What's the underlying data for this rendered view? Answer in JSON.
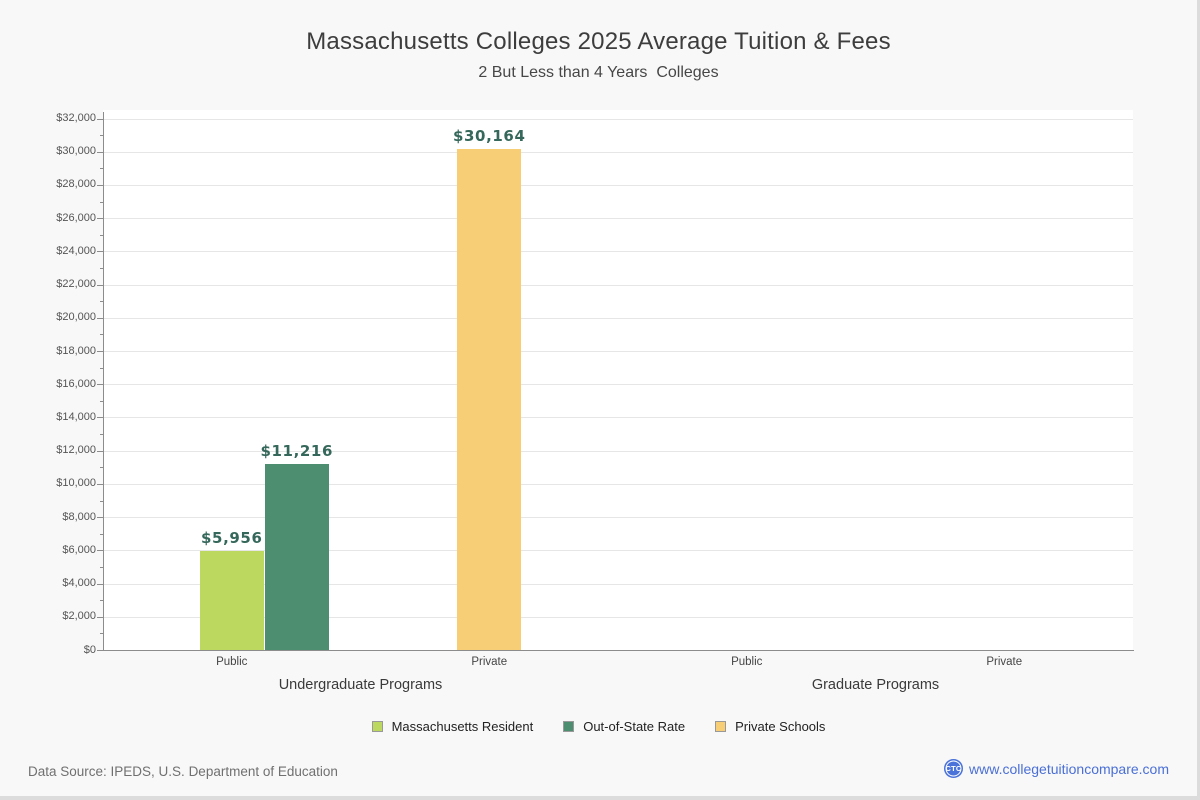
{
  "page": {
    "title": "Massachusetts Colleges 2025 Average Tuition & Fees",
    "subtitle": "2 But Less than 4 Years  Colleges",
    "footer": {
      "source": "Data Source: IPEDS, U.S. Department of Education",
      "logo_text": "CTC",
      "site": "www.collegetuitioncompare.com"
    }
  },
  "chart_data": {
    "type": "bar",
    "title": "Massachusetts Colleges 2025 Average Tuition & Fees",
    "subtitle": "2 But Less than 4 Years  Colleges",
    "xlabel": "",
    "ylabel": "",
    "ylim": [
      0,
      32000
    ],
    "ytick_step": 2000,
    "ytick_minor_step": 1000,
    "ytick_prefix": "$",
    "grid": true,
    "legend_position": "bottom",
    "plot_background": "#ffffff",
    "categories": [
      "Public",
      "Private",
      "Public",
      "Private"
    ],
    "groups": [
      {
        "label": "Undergraduate Programs",
        "categories": [
          0,
          1
        ]
      },
      {
        "label": "Graduate Programs",
        "categories": [
          2,
          3
        ]
      }
    ],
    "series": [
      {
        "name": "Massachusetts Resident",
        "color": "#bdd85e",
        "values": [
          5956,
          null,
          null,
          null
        ]
      },
      {
        "name": "Out-of-State Rate",
        "color": "#4e8e70",
        "values": [
          11216,
          null,
          null,
          null
        ]
      },
      {
        "name": "Private Schools",
        "color": "#f7cd76",
        "values": [
          null,
          30164,
          null,
          null
        ]
      }
    ],
    "value_labels": [
      "$5,956",
      "$11,216",
      "$30,164"
    ]
  }
}
